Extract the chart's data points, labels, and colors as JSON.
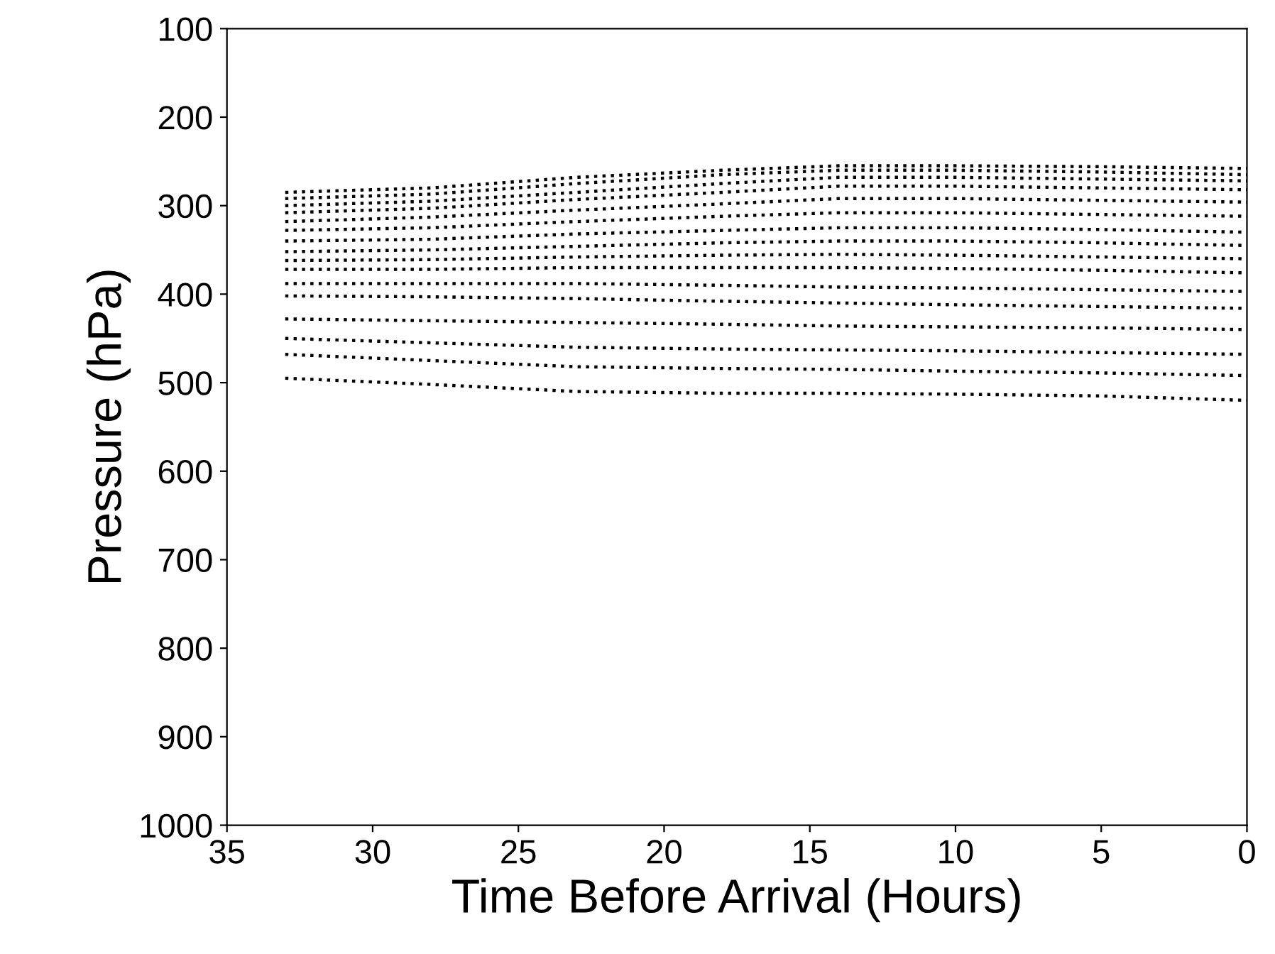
{
  "chart_data": {
    "type": "line",
    "xlabel": "Time Before Arrival (Hours)",
    "ylabel": "Pressure (hPa)",
    "x": [
      33,
      28,
      23,
      18,
      14,
      10,
      5,
      0
    ],
    "xlim": [
      35,
      0
    ],
    "xticks": [
      35,
      30,
      25,
      20,
      15,
      10,
      5,
      0
    ],
    "ylim": [
      1000,
      100
    ],
    "yticks": [
      100,
      200,
      300,
      400,
      500,
      600,
      700,
      800,
      900,
      1000
    ],
    "marker": "none",
    "line_style": "dotted",
    "series": [
      {
        "color": "#000000",
        "values": [
          285,
          280,
          268,
          260,
          255,
          255,
          256,
          258
        ]
      },
      {
        "color": "#000000",
        "values": [
          292,
          287,
          275,
          265,
          260,
          260,
          262,
          265
        ]
      },
      {
        "color": "#000000",
        "values": [
          300,
          295,
          285,
          275,
          268,
          268,
          270,
          272
        ]
      },
      {
        "color": "#000000",
        "values": [
          308,
          303,
          293,
          285,
          278,
          278,
          280,
          282
        ]
      },
      {
        "color": "#000000",
        "values": [
          318,
          313,
          305,
          298,
          292,
          292,
          294,
          296
        ]
      },
      {
        "color": "#000000",
        "values": [
          328,
          325,
          318,
          312,
          308,
          308,
          310,
          312
        ]
      },
      {
        "color": "#000000",
        "values": [
          340,
          338,
          332,
          328,
          325,
          325,
          327,
          330
        ]
      },
      {
        "color": "#000000",
        "values": [
          352,
          350,
          346,
          342,
          340,
          340,
          342,
          345
        ]
      },
      {
        "color": "#000000",
        "values": [
          362,
          361,
          358,
          356,
          355,
          356,
          358,
          360
        ]
      },
      {
        "color": "#000000",
        "values": [
          372,
          372,
          370,
          370,
          370,
          371,
          373,
          376
        ]
      },
      {
        "color": "#000000",
        "values": [
          388,
          388,
          388,
          390,
          392,
          393,
          395,
          397
        ]
      },
      {
        "color": "#000000",
        "values": [
          402,
          403,
          405,
          408,
          410,
          412,
          414,
          416
        ]
      },
      {
        "color": "#000000",
        "values": [
          428,
          430,
          432,
          434,
          436,
          437,
          438,
          440
        ]
      },
      {
        "color": "#000000",
        "values": [
          450,
          455,
          460,
          462,
          463,
          464,
          466,
          468
        ]
      },
      {
        "color": "#000000",
        "values": [
          468,
          475,
          482,
          484,
          485,
          487,
          489,
          492
        ]
      },
      {
        "color": "#000000",
        "values": [
          495,
          502,
          510,
          512,
          512,
          513,
          515,
          520
        ]
      }
    ]
  }
}
